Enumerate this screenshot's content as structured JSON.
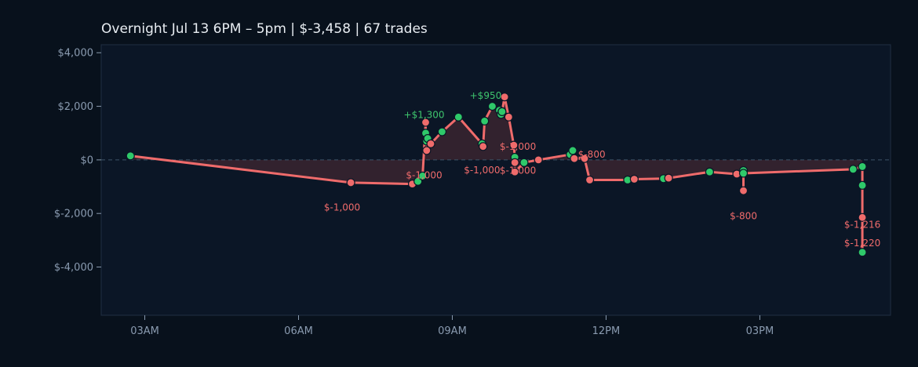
{
  "title": "Overnight  Jul 13 6PM – 5pm  |  $-3,458  |  67 trades",
  "colors": {
    "background": "#08111c",
    "plot_bg": "#0b1626",
    "line": "#ef6b6b",
    "win": "#2fc96a",
    "loss": "#ef6b6b",
    "fill": "#3a2530",
    "zero_line": "#3d5468",
    "text": "#8a9bb0"
  },
  "chart_data": {
    "type": "line",
    "title": "Overnight  Jul 13 6PM – 5pm  |  $-3,458  |  67 trades",
    "x_unit": "hour of day",
    "xlim": [
      2.15,
      17.55
    ],
    "ylim": [
      -5800,
      4300
    ],
    "x_ticks": [
      3,
      6,
      9,
      12,
      15
    ],
    "x_tick_labels": [
      "03AM",
      "06AM",
      "09AM",
      "12PM",
      "03PM"
    ],
    "y_ticks": [
      4000,
      2000,
      0,
      -2000,
      -4000
    ],
    "y_tick_labels": [
      "$4,000",
      "$2,000",
      "$0",
      "$-2,000",
      "$-4,000"
    ],
    "zero_line": true,
    "series": [
      {
        "points": [
          {
            "x": 2.72,
            "y": 150,
            "r": "win"
          },
          {
            "x": 7.02,
            "y": -850,
            "r": "loss"
          },
          {
            "x": 8.22,
            "y": -900,
            "r": "loss"
          },
          {
            "x": 8.33,
            "y": -800,
            "r": "win"
          },
          {
            "x": 8.42,
            "y": -600,
            "r": "win"
          },
          {
            "x": 8.48,
            "y": 1400,
            "r": "loss"
          },
          {
            "x": 8.48,
            "y": 1000,
            "r": "win"
          },
          {
            "x": 8.5,
            "y": 700,
            "r": "win"
          },
          {
            "x": 8.52,
            "y": 800,
            "r": "win"
          },
          {
            "x": 8.5,
            "y": 350,
            "r": "loss"
          },
          {
            "x": 8.58,
            "y": 600,
            "r": "loss"
          },
          {
            "x": 8.8,
            "y": 1050,
            "r": "win"
          },
          {
            "x": 9.12,
            "y": 1600,
            "r": "win"
          },
          {
            "x": 9.58,
            "y": 600,
            "r": "win"
          },
          {
            "x": 9.6,
            "y": 500,
            "r": "loss"
          },
          {
            "x": 9.63,
            "y": 1450,
            "r": "win"
          },
          {
            "x": 9.78,
            "y": 2000,
            "r": "win"
          },
          {
            "x": 9.92,
            "y": 1850,
            "r": "win"
          },
          {
            "x": 9.95,
            "y": 1700,
            "r": "win"
          },
          {
            "x": 9.97,
            "y": 1800,
            "r": "win"
          },
          {
            "x": 10.02,
            "y": 2350,
            "r": "loss"
          },
          {
            "x": 10.1,
            "y": 1600,
            "r": "loss"
          },
          {
            "x": 10.2,
            "y": 550,
            "r": "loss"
          },
          {
            "x": 10.22,
            "y": 100,
            "r": "win"
          },
          {
            "x": 10.22,
            "y": -100,
            "r": "loss"
          },
          {
            "x": 10.22,
            "y": -450,
            "r": "loss"
          },
          {
            "x": 10.4,
            "y": -100,
            "r": "win"
          },
          {
            "x": 10.68,
            "y": 0,
            "r": "loss"
          },
          {
            "x": 11.3,
            "y": 200,
            "r": "win"
          },
          {
            "x": 11.35,
            "y": 350,
            "r": "win"
          },
          {
            "x": 11.38,
            "y": 50,
            "r": "loss"
          },
          {
            "x": 11.58,
            "y": 50,
            "r": "loss"
          },
          {
            "x": 11.68,
            "y": -750,
            "r": "loss"
          },
          {
            "x": 12.42,
            "y": -750,
            "r": "win"
          },
          {
            "x": 12.55,
            "y": -720,
            "r": "loss"
          },
          {
            "x": 13.12,
            "y": -700,
            "r": "win"
          },
          {
            "x": 13.22,
            "y": -680,
            "r": "loss"
          },
          {
            "x": 14.02,
            "y": -450,
            "r": "win"
          },
          {
            "x": 14.55,
            "y": -530,
            "r": "loss"
          },
          {
            "x": 14.68,
            "y": -400,
            "r": "win"
          },
          {
            "x": 14.68,
            "y": -1150,
            "r": "loss"
          },
          {
            "x": 14.68,
            "y": -500,
            "r": "win"
          },
          {
            "x": 16.82,
            "y": -350,
            "r": "win"
          },
          {
            "x": 17.0,
            "y": -250,
            "r": "win"
          },
          {
            "x": 17.0,
            "y": -950,
            "r": "win"
          },
          {
            "x": 17.0,
            "y": -2150,
            "r": "loss"
          },
          {
            "x": 17.0,
            "y": -3450,
            "r": "win"
          }
        ]
      }
    ],
    "annotations": [
      {
        "text": "$-1,000",
        "x": 6.85,
        "y": -1770,
        "r": "loss"
      },
      {
        "text": "$-1,000",
        "x": 8.45,
        "y": -580,
        "r": "loss"
      },
      {
        "text": "+$1,300",
        "x": 8.45,
        "y": 1680,
        "r": "win"
      },
      {
        "text": "+$950",
        "x": 9.65,
        "y": 2400,
        "r": "win"
      },
      {
        "text": "$-1,000",
        "x": 9.58,
        "y": -380,
        "r": "loss"
      },
      {
        "text": "$-1,000",
        "x": 10.28,
        "y": 500,
        "r": "loss"
      },
      {
        "text": "$-1,000",
        "x": 10.28,
        "y": -400,
        "r": "loss"
      },
      {
        "text": "$-800",
        "x": 11.72,
        "y": 200,
        "r": "loss"
      },
      {
        "text": "$-800",
        "x": 14.68,
        "y": -2100,
        "r": "loss"
      },
      {
        "text": "$-1,216",
        "x": 17.0,
        "y": -2420,
        "r": "loss"
      },
      {
        "text": "$-1,220",
        "x": 17.0,
        "y": -3100,
        "r": "loss"
      }
    ]
  }
}
